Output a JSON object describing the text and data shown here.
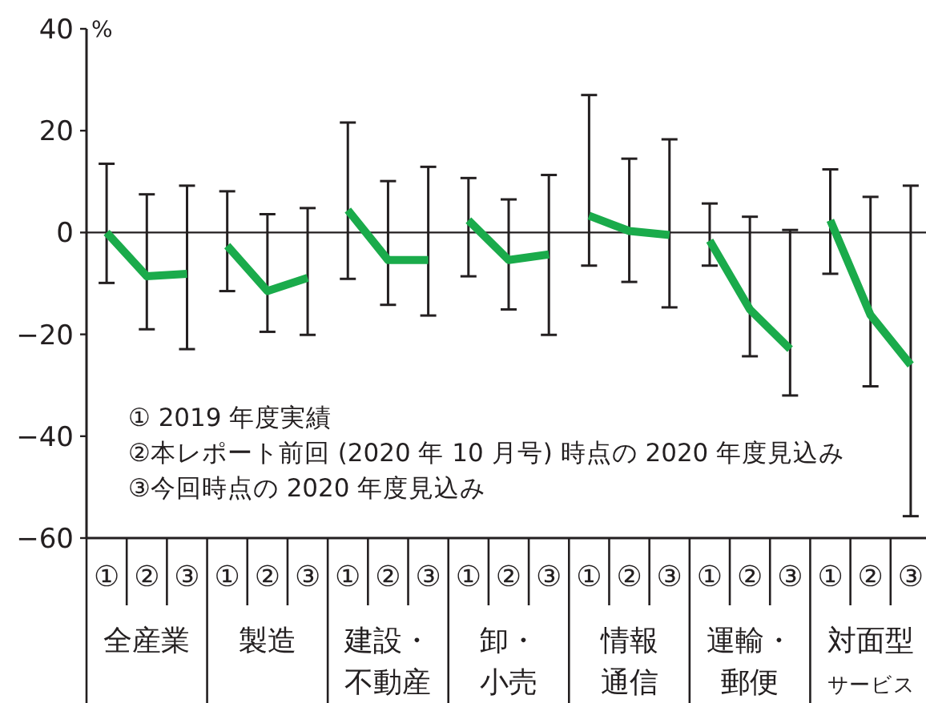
{
  "chart_data": {
    "type": "line",
    "ylabel": "%",
    "ylim": [
      -60,
      40
    ],
    "yticks": [
      -60,
      -40,
      -20,
      0,
      20,
      40
    ],
    "marker": "none",
    "line_style": "solid",
    "categories": [
      "①",
      "②",
      "③",
      "①",
      "②",
      "③",
      "①",
      "②",
      "③",
      "①",
      "②",
      "③",
      "①",
      "②",
      "③",
      "①",
      "②",
      "③",
      "①",
      "②",
      "③"
    ],
    "ref_lines": [
      {
        "axis": "y",
        "value": 0,
        "color": "#231f20"
      }
    ],
    "annotations": [
      "① 2019 年度実績",
      "②本レポート前回 (2020 年 10 月号) 時点の 2020 年度見込み",
      "③今回時点の 2020 年度見込み",
      "全産業",
      "製造",
      "建設・不動産",
      "卸・小売",
      "情報通信",
      "運輸・郵便",
      "対面型サービス"
    ],
    "series": [
      {
        "color": "#1aab4b",
        "values": [
          0,
          -8.6,
          -8.1,
          null,
          null,
          null,
          null,
          null,
          null,
          null,
          null,
          null,
          null,
          null,
          null,
          null,
          null,
          null,
          null,
          null,
          null
        ],
        "errors": [
          [
            -9.9,
            13.5
          ],
          [
            -19,
            7.5
          ],
          [
            -22.9,
            9.2
          ],
          null,
          null,
          null,
          null,
          null,
          null,
          null,
          null,
          null,
          null,
          null,
          null,
          null,
          null,
          null,
          null,
          null,
          null
        ]
      },
      {
        "color": "#1aab4b",
        "values": [
          null,
          null,
          null,
          -2.6,
          -11.5,
          -8.9,
          null,
          null,
          null,
          null,
          null,
          null,
          null,
          null,
          null,
          null,
          null,
          null,
          null,
          null,
          null
        ],
        "errors": [
          null,
          null,
          null,
          [
            -11.5,
            8.1
          ],
          [
            -19.5,
            3.6
          ],
          [
            -20.1,
            4.8
          ],
          null,
          null,
          null,
          null,
          null,
          null,
          null,
          null,
          null,
          null,
          null,
          null,
          null,
          null,
          null
        ]
      },
      {
        "color": "#1aab4b",
        "values": [
          null,
          null,
          null,
          null,
          null,
          null,
          4.4,
          -5.4,
          -5.4,
          null,
          null,
          null,
          null,
          null,
          null,
          null,
          null,
          null,
          null,
          null,
          null
        ],
        "errors": [
          null,
          null,
          null,
          null,
          null,
          null,
          [
            -9.1,
            21.6
          ],
          [
            -14.2,
            10.1
          ],
          [
            -16.3,
            12.9
          ],
          null,
          null,
          null,
          null,
          null,
          null,
          null,
          null,
          null,
          null,
          null,
          null
        ]
      },
      {
        "color": "#1aab4b",
        "values": [
          null,
          null,
          null,
          null,
          null,
          null,
          null,
          null,
          null,
          2.4,
          -5.4,
          -4.3,
          null,
          null,
          null,
          null,
          null,
          null,
          null,
          null,
          null
        ],
        "errors": [
          null,
          null,
          null,
          null,
          null,
          null,
          null,
          null,
          null,
          [
            -8.6,
            10.7
          ],
          [
            -15.1,
            6.5
          ],
          [
            -20.1,
            11.3
          ],
          null,
          null,
          null,
          null,
          null,
          null,
          null,
          null,
          null
        ]
      },
      {
        "color": "#1aab4b",
        "values": [
          null,
          null,
          null,
          null,
          null,
          null,
          null,
          null,
          null,
          null,
          null,
          null,
          3.3,
          0.3,
          -0.5,
          null,
          null,
          null,
          null,
          null,
          null
        ],
        "errors": [
          null,
          null,
          null,
          null,
          null,
          null,
          null,
          null,
          null,
          null,
          null,
          null,
          [
            -6.5,
            27
          ],
          [
            -9.7,
            14.5
          ],
          [
            -14.7,
            18.3
          ],
          null,
          null,
          null,
          null,
          null,
          null
        ]
      },
      {
        "color": "#1aab4b",
        "values": [
          null,
          null,
          null,
          null,
          null,
          null,
          null,
          null,
          null,
          null,
          null,
          null,
          null,
          null,
          null,
          -1.6,
          -15.1,
          -22.9,
          null,
          null,
          null
        ],
        "errors": [
          null,
          null,
          null,
          null,
          null,
          null,
          null,
          null,
          null,
          null,
          null,
          null,
          null,
          null,
          null,
          [
            -6.5,
            5.7
          ],
          [
            -24.3,
            3.1
          ],
          [
            -32,
            0.5
          ],
          null,
          null,
          null
        ]
      },
      {
        "color": "#1aab4b",
        "values": [
          null,
          null,
          null,
          null,
          null,
          null,
          null,
          null,
          null,
          null,
          null,
          null,
          null,
          null,
          null,
          null,
          null,
          null,
          2.4,
          -16.2,
          -26
        ],
        "errors": [
          null,
          null,
          null,
          null,
          null,
          null,
          null,
          null,
          null,
          null,
          null,
          null,
          null,
          null,
          null,
          null,
          null,
          null,
          [
            -8.1,
            12.4
          ],
          [
            -30.2,
            7
          ],
          [
            -55.7,
            9.2
          ]
        ]
      }
    ]
  }
}
